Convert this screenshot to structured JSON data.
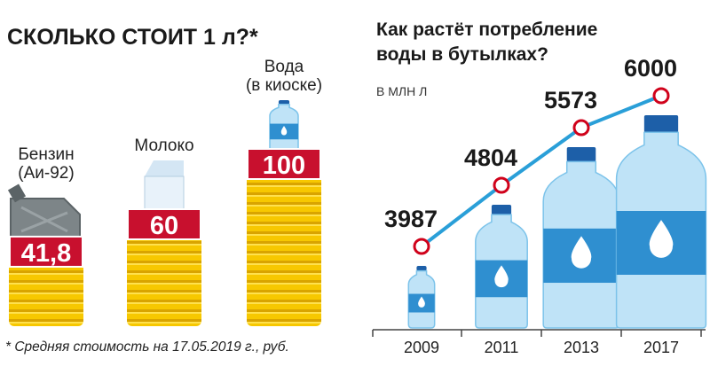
{
  "chart_data": [
    {
      "type": "pictorial-bar",
      "title": "СКОЛЬКО СТОИТ 1 л?*",
      "categories": [
        "Бензин\n(Аи-92)",
        "Молоко",
        "Вода\n(в киоске)"
      ],
      "values": [
        41.8,
        60,
        100
      ],
      "value_labels": [
        "41,8",
        "60",
        "100"
      ],
      "color": "#c8102e",
      "footnote": "* Средняя стоимость на 17.05.2019 г., руб."
    },
    {
      "type": "line",
      "title": "Как растёт потребление\nводы в бутылках?",
      "subtitle": "В МЛН Л",
      "categories": [
        "2009",
        "2011",
        "2013",
        "2017"
      ],
      "values": [
        3987,
        4804,
        5573,
        6000
      ],
      "color": "#2a9fd8",
      "marker_color": "#d0021b"
    }
  ]
}
